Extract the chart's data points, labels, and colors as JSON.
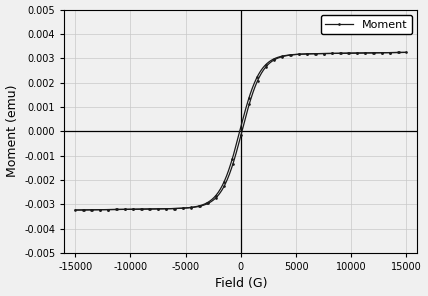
{
  "title": "",
  "xlabel": "Field (G)",
  "ylabel": "Moment (emu)",
  "xlim": [
    -16000,
    16000
  ],
  "ylim": [
    -0.005,
    0.005
  ],
  "xticks": [
    -15000,
    -10000,
    -5000,
    0,
    5000,
    10000,
    15000
  ],
  "yticks": [
    -0.005,
    -0.004,
    -0.003,
    -0.002,
    -0.001,
    0.0,
    0.001,
    0.002,
    0.003,
    0.004,
    0.005
  ],
  "line_color": "#1a1a1a",
  "legend_label": "Moment",
  "Ms": 0.00315,
  "Hc": 100,
  "background_color": "#f0f0f0",
  "grid_color": "#c8c8c8"
}
